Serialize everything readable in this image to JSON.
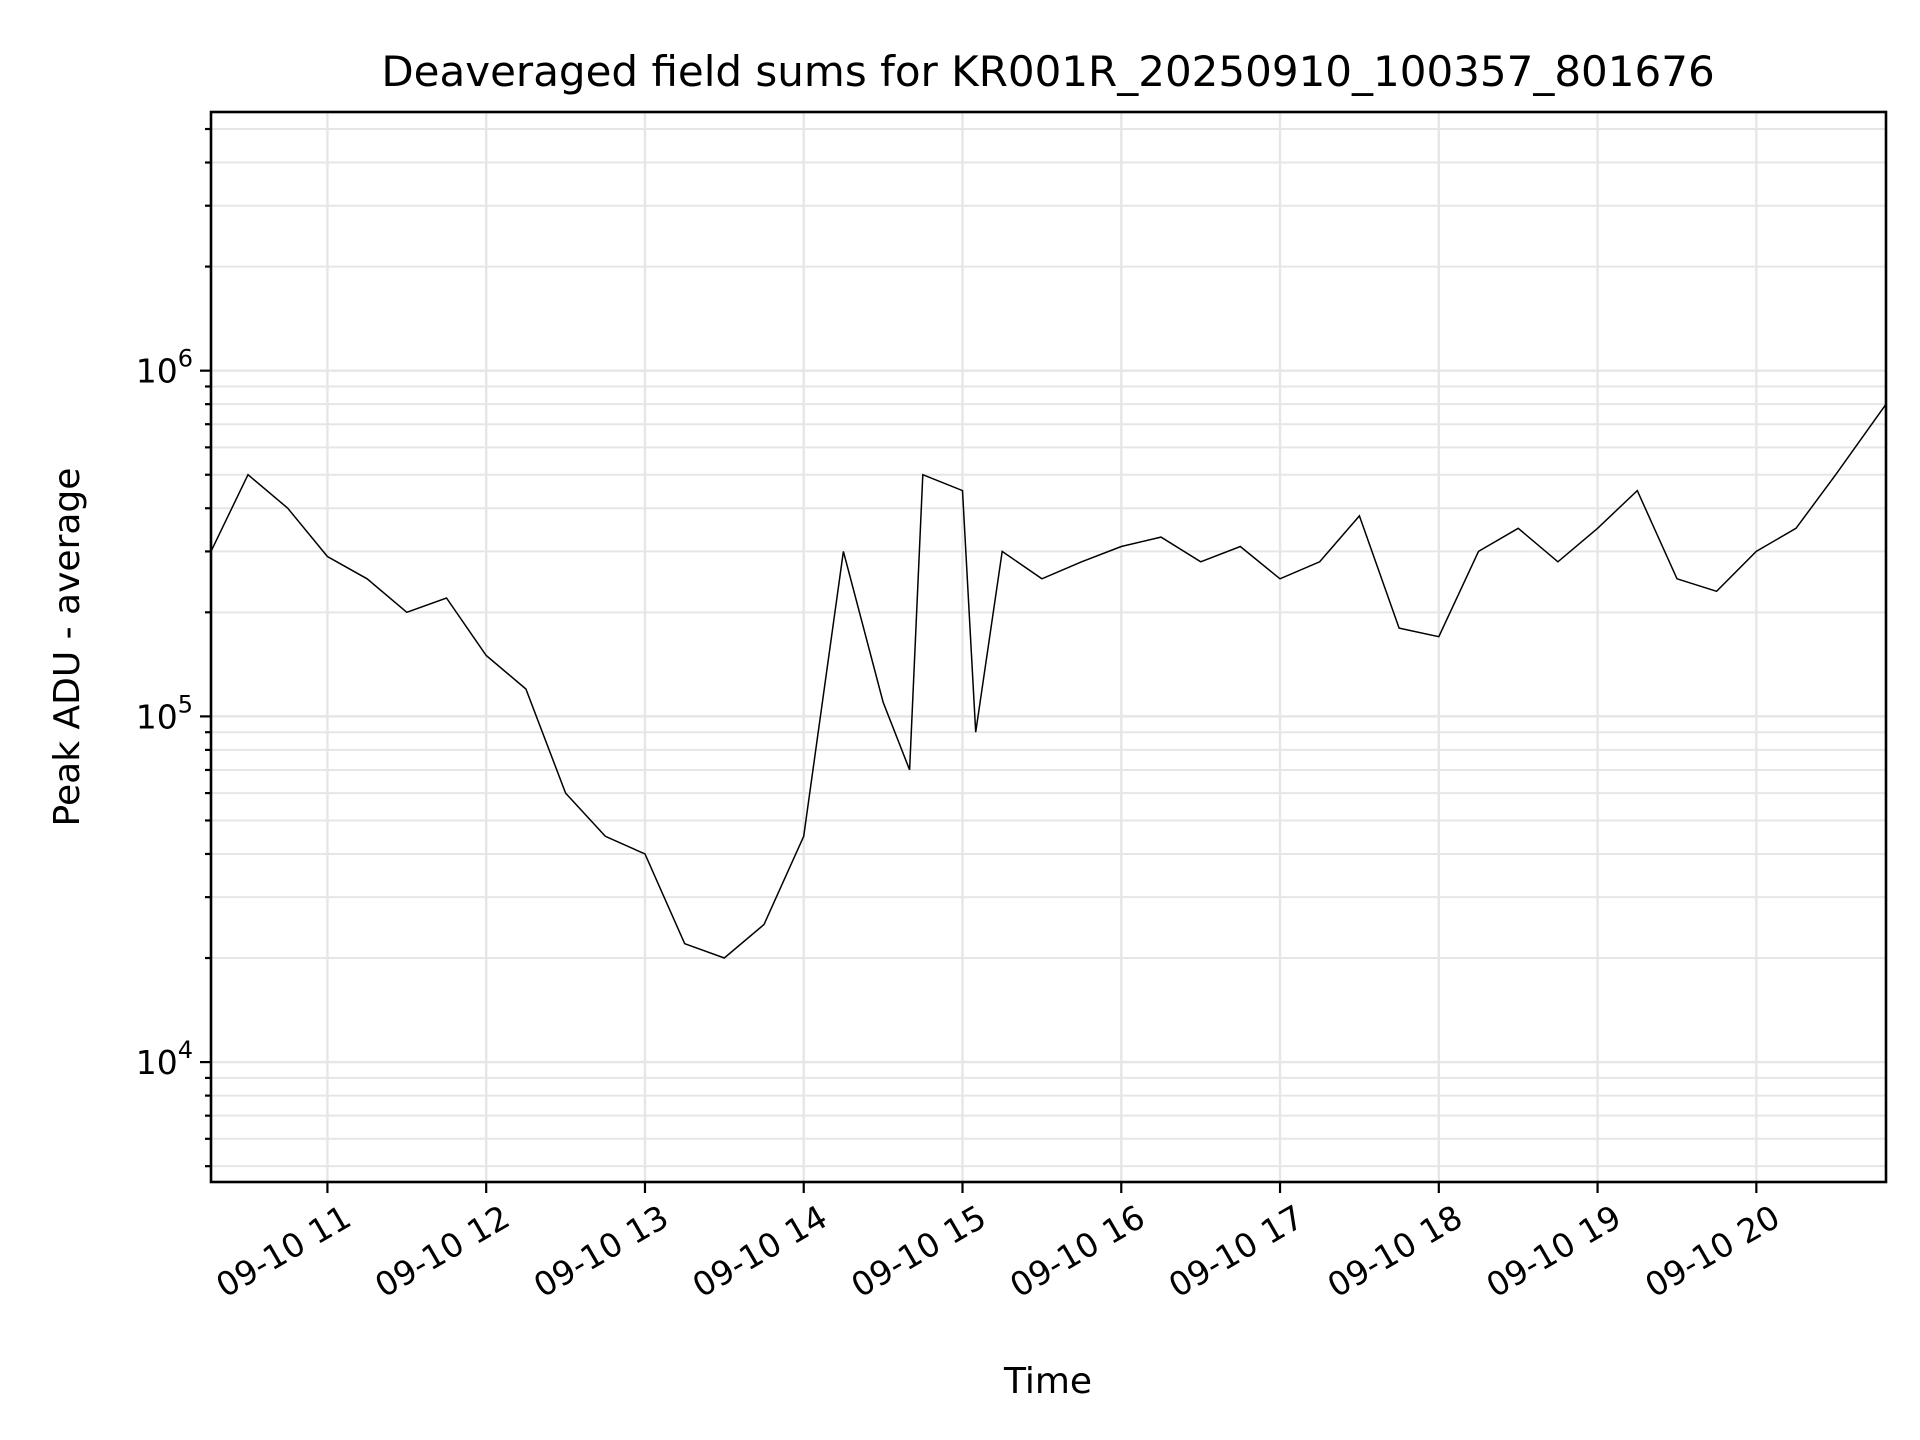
{
  "chart_data": {
    "type": "line",
    "title": "Deaveraged field sums for KR001R_20250910_100357_801676",
    "xlabel": "Time",
    "ylabel": "Peak ADU - average",
    "yscale": "log",
    "grid": true,
    "xlim": [
      "09-10 10:16",
      "09-10 20:49"
    ],
    "ylim": [
      4500,
      5600000
    ],
    "x_ticks": [
      {
        "value": "09-10 11:00",
        "label": "09-10 11"
      },
      {
        "value": "09-10 12:00",
        "label": "09-10 12"
      },
      {
        "value": "09-10 13:00",
        "label": "09-10 13"
      },
      {
        "value": "09-10 14:00",
        "label": "09-10 14"
      },
      {
        "value": "09-10 15:00",
        "label": "09-10 15"
      },
      {
        "value": "09-10 16:00",
        "label": "09-10 16"
      },
      {
        "value": "09-10 17:00",
        "label": "09-10 17"
      },
      {
        "value": "09-10 18:00",
        "label": "09-10 18"
      },
      {
        "value": "09-10 19:00",
        "label": "09-10 19"
      },
      {
        "value": "09-10 20:00",
        "label": "09-10 20"
      }
    ],
    "y_ticks": [
      {
        "value": 10000,
        "base": "10",
        "exp": "4"
      },
      {
        "value": 100000,
        "base": "10",
        "exp": "5"
      },
      {
        "value": 1000000,
        "base": "10",
        "exp": "6"
      }
    ],
    "series": [
      {
        "color": "#000000",
        "x": [
          "09-10 10:16",
          "09-10 10:30",
          "09-10 10:45",
          "09-10 11:00",
          "09-10 11:15",
          "09-10 11:30",
          "09-10 11:45",
          "09-10 12:00",
          "09-10 12:15",
          "09-10 12:30",
          "09-10 12:45",
          "09-10 13:00",
          "09-10 13:15",
          "09-10 13:30",
          "09-10 13:45",
          "09-10 14:00",
          "09-10 14:15",
          "09-10 14:30",
          "09-10 14:40",
          "09-10 14:45",
          "09-10 15:00",
          "09-10 15:05",
          "09-10 15:15",
          "09-10 15:30",
          "09-10 15:45",
          "09-10 16:00",
          "09-10 16:15",
          "09-10 16:30",
          "09-10 16:45",
          "09-10 17:00",
          "09-10 17:15",
          "09-10 17:30",
          "09-10 17:45",
          "09-10 18:00",
          "09-10 18:15",
          "09-10 18:30",
          "09-10 18:45",
          "09-10 19:00",
          "09-10 19:15",
          "09-10 19:30",
          "09-10 19:45",
          "09-10 20:00",
          "09-10 20:15",
          "09-10 20:30",
          "09-10 20:49"
        ],
        "y": [
          300000,
          500000,
          400000,
          290000,
          250000,
          200000,
          220000,
          150000,
          120000,
          60000,
          45000,
          40000,
          22000,
          20000,
          25000,
          45000,
          300000,
          110000,
          70000,
          500000,
          450000,
          90000,
          300000,
          250000,
          280000,
          310000,
          330000,
          280000,
          310000,
          250000,
          280000,
          380000,
          180000,
          170000,
          300000,
          350000,
          280000,
          350000,
          450000,
          250000,
          230000,
          300000,
          350000,
          500000,
          800000
        ]
      }
    ]
  }
}
